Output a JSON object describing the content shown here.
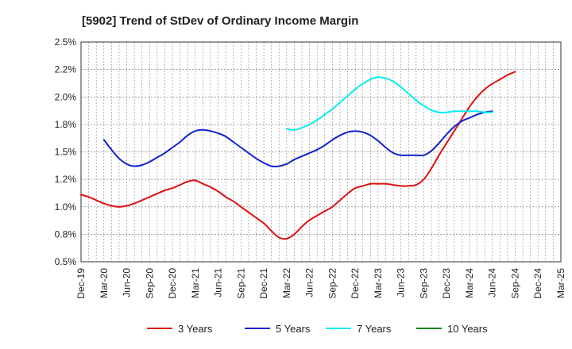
{
  "chart_data": {
    "type": "line",
    "title": "[5902]  Trend of StDev of Ordinary Income Margin",
    "xlabel": "",
    "ylabel": "",
    "ylim": [
      0.5,
      2.5
    ],
    "y_ticks": [
      "2.5%",
      "2.2%",
      "2.0%",
      "1.8%",
      "1.5%",
      "1.2%",
      "1.0%",
      "0.8%",
      "0.5%"
    ],
    "y_tick_values": [
      2.5,
      2.25,
      2.0,
      1.75,
      1.5,
      1.25,
      1.0,
      0.75,
      0.5
    ],
    "x_ticks": [
      "Dec-19",
      "Mar-20",
      "Jun-20",
      "Sep-20",
      "Dec-20",
      "Mar-21",
      "Jun-21",
      "Sep-21",
      "Dec-21",
      "Mar-22",
      "Jun-22",
      "Sep-22",
      "Dec-22",
      "Mar-23",
      "Jun-23",
      "Sep-23",
      "Dec-23",
      "Mar-24",
      "Jun-24",
      "Sep-24",
      "Dec-24",
      "Mar-25"
    ],
    "grid": true,
    "legend_position": "bottom",
    "series": [
      {
        "name": "3 Years",
        "color": "#dd1111",
        "points": [
          [
            "Dec-19",
            1.11
          ],
          [
            "Jan-20",
            1.09
          ],
          [
            "Feb-20",
            1.06
          ],
          [
            "Mar-20",
            1.03
          ],
          [
            "Apr-20",
            1.01
          ],
          [
            "May-20",
            1.0
          ],
          [
            "Jun-20",
            1.01
          ],
          [
            "Jul-20",
            1.03
          ],
          [
            "Aug-20",
            1.06
          ],
          [
            "Sep-20",
            1.09
          ],
          [
            "Oct-20",
            1.12
          ],
          [
            "Nov-20",
            1.15
          ],
          [
            "Dec-20",
            1.17
          ],
          [
            "Jan-21",
            1.2
          ],
          [
            "Feb-21",
            1.23
          ],
          [
            "Mar-21",
            1.24
          ],
          [
            "Apr-21",
            1.21
          ],
          [
            "May-21",
            1.18
          ],
          [
            "Jun-21",
            1.14
          ],
          [
            "Jul-21",
            1.09
          ],
          [
            "Aug-21",
            1.05
          ],
          [
            "Sep-21",
            1.0
          ],
          [
            "Oct-21",
            0.95
          ],
          [
            "Nov-21",
            0.9
          ],
          [
            "Dec-21",
            0.85
          ],
          [
            "Jan-22",
            0.78
          ],
          [
            "Feb-22",
            0.72
          ],
          [
            "Mar-22",
            0.71
          ],
          [
            "Apr-22",
            0.75
          ],
          [
            "May-22",
            0.82
          ],
          [
            "Jun-22",
            0.88
          ],
          [
            "Jul-22",
            0.92
          ],
          [
            "Aug-22",
            0.96
          ],
          [
            "Sep-22",
            1.0
          ],
          [
            "Oct-22",
            1.06
          ],
          [
            "Nov-22",
            1.12
          ],
          [
            "Dec-22",
            1.17
          ],
          [
            "Jan-23",
            1.19
          ],
          [
            "Feb-23",
            1.21
          ],
          [
            "Mar-23",
            1.21
          ],
          [
            "Apr-23",
            1.21
          ],
          [
            "May-23",
            1.2
          ],
          [
            "Jun-23",
            1.19
          ],
          [
            "Jul-23",
            1.19
          ],
          [
            "Aug-23",
            1.2
          ],
          [
            "Sep-23",
            1.25
          ],
          [
            "Oct-23",
            1.35
          ],
          [
            "Nov-23",
            1.47
          ],
          [
            "Dec-23",
            1.58
          ],
          [
            "Jan-24",
            1.69
          ],
          [
            "Feb-24",
            1.8
          ],
          [
            "Mar-24",
            1.91
          ],
          [
            "Apr-24",
            2.0
          ],
          [
            "May-24",
            2.07
          ],
          [
            "Jun-24",
            2.12
          ],
          [
            "Jul-24",
            2.16
          ],
          [
            "Aug-24",
            2.2
          ],
          [
            "Sep-24",
            2.23
          ]
        ]
      },
      {
        "name": "5 Years",
        "color": "#1122cc",
        "points": [
          [
            "Mar-20",
            1.61
          ],
          [
            "Apr-20",
            1.52
          ],
          [
            "May-20",
            1.44
          ],
          [
            "Jun-20",
            1.39
          ],
          [
            "Jul-20",
            1.37
          ],
          [
            "Aug-20",
            1.38
          ],
          [
            "Sep-20",
            1.41
          ],
          [
            "Oct-20",
            1.45
          ],
          [
            "Nov-20",
            1.49
          ],
          [
            "Dec-20",
            1.54
          ],
          [
            "Jan-21",
            1.59
          ],
          [
            "Feb-21",
            1.65
          ],
          [
            "Mar-21",
            1.69
          ],
          [
            "Apr-21",
            1.7
          ],
          [
            "May-21",
            1.69
          ],
          [
            "Jun-21",
            1.67
          ],
          [
            "Jul-21",
            1.64
          ],
          [
            "Aug-21",
            1.59
          ],
          [
            "Sep-21",
            1.54
          ],
          [
            "Oct-21",
            1.49
          ],
          [
            "Nov-21",
            1.44
          ],
          [
            "Dec-21",
            1.4
          ],
          [
            "Jan-22",
            1.37
          ],
          [
            "Feb-22",
            1.37
          ],
          [
            "Mar-22",
            1.39
          ],
          [
            "Apr-22",
            1.43
          ],
          [
            "May-22",
            1.46
          ],
          [
            "Jun-22",
            1.49
          ],
          [
            "Jul-22",
            1.52
          ],
          [
            "Aug-22",
            1.56
          ],
          [
            "Sep-22",
            1.61
          ],
          [
            "Oct-22",
            1.65
          ],
          [
            "Nov-22",
            1.68
          ],
          [
            "Dec-22",
            1.69
          ],
          [
            "Jan-23",
            1.68
          ],
          [
            "Feb-23",
            1.65
          ],
          [
            "Mar-23",
            1.6
          ],
          [
            "Apr-23",
            1.54
          ],
          [
            "May-23",
            1.49
          ],
          [
            "Jun-23",
            1.47
          ],
          [
            "Jul-23",
            1.47
          ],
          [
            "Aug-23",
            1.47
          ],
          [
            "Sep-23",
            1.47
          ],
          [
            "Oct-23",
            1.51
          ],
          [
            "Nov-23",
            1.58
          ],
          [
            "Dec-23",
            1.66
          ],
          [
            "Jan-24",
            1.73
          ],
          [
            "Feb-24",
            1.78
          ],
          [
            "Mar-24",
            1.81
          ],
          [
            "Apr-24",
            1.84
          ],
          [
            "May-24",
            1.86
          ],
          [
            "Jun-24",
            1.87
          ]
        ]
      },
      {
        "name": "7 Years",
        "color": "#00eeee",
        "points": [
          [
            "Mar-22",
            1.71
          ],
          [
            "Apr-22",
            1.7
          ],
          [
            "May-22",
            1.72
          ],
          [
            "Jun-22",
            1.75
          ],
          [
            "Jul-22",
            1.79
          ],
          [
            "Aug-22",
            1.84
          ],
          [
            "Sep-22",
            1.89
          ],
          [
            "Oct-22",
            1.95
          ],
          [
            "Nov-22",
            2.01
          ],
          [
            "Dec-22",
            2.07
          ],
          [
            "Jan-23",
            2.12
          ],
          [
            "Feb-23",
            2.16
          ],
          [
            "Mar-23",
            2.18
          ],
          [
            "Apr-23",
            2.17
          ],
          [
            "May-23",
            2.14
          ],
          [
            "Jun-23",
            2.09
          ],
          [
            "Jul-23",
            2.03
          ],
          [
            "Aug-23",
            1.97
          ],
          [
            "Sep-23",
            1.92
          ],
          [
            "Oct-23",
            1.88
          ],
          [
            "Nov-23",
            1.86
          ],
          [
            "Dec-23",
            1.86
          ],
          [
            "Jan-24",
            1.87
          ],
          [
            "Feb-24",
            1.87
          ],
          [
            "Mar-24",
            1.87
          ],
          [
            "Apr-24",
            1.87
          ],
          [
            "May-24",
            1.86
          ],
          [
            "Jun-24",
            1.86
          ]
        ]
      },
      {
        "name": "10 Years",
        "color": "#118811",
        "points": []
      }
    ]
  }
}
